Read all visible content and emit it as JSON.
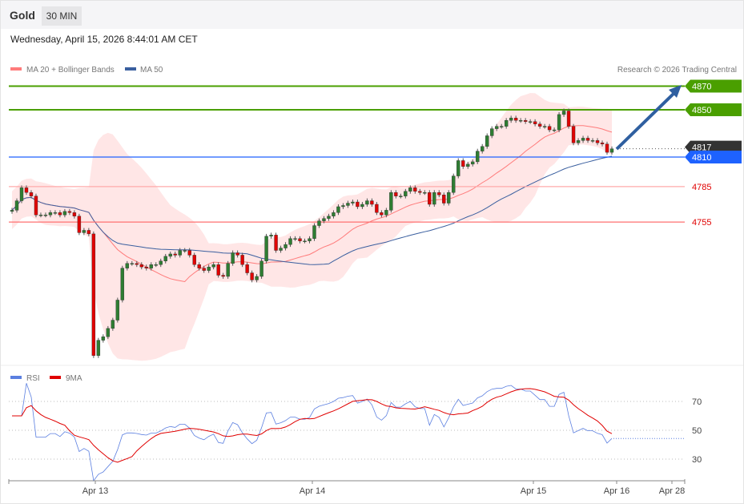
{
  "header": {
    "symbol": "Gold",
    "interval": "30 MIN",
    "datetime": "Wednesday, April 15, 2026 8:44:01 AM CET"
  },
  "colors": {
    "up": "#2e7d32",
    "down": "#e00000",
    "resistance": "#4a9f00",
    "pivot": "#1e62ff",
    "support": "#ff3b3b",
    "ma20": "#ff7b7b",
    "ma50": "#3a5f9f",
    "band": "#ffe0e0",
    "rsi": "#5b7fe0",
    "rsi_ma": "#e00000",
    "current": "#333333",
    "arrow": "#2f5fa0"
  },
  "chart_data": [
    {
      "type": "candlestick",
      "title": "Gold 30 MIN",
      "legend": [
        {
          "label": "MA 20 + Bollinger Bands"
        },
        {
          "label": "MA 50"
        }
      ],
      "credit": "Research © 2026 Trading Central",
      "first_open": 4764,
      "closes": [
        4765,
        4773,
        4784,
        4780,
        4777,
        4761,
        4761,
        4761,
        4763,
        4763,
        4761,
        4764,
        4763,
        4760,
        4746,
        4748,
        4745,
        4642,
        4655,
        4658,
        4665,
        4672,
        4689,
        4716,
        4720,
        4720,
        4719,
        4717,
        4716,
        4719,
        4719,
        4722,
        4726,
        4728,
        4727,
        4731,
        4731,
        4727,
        4719,
        4716,
        4714,
        4717,
        4719,
        4710,
        4709,
        4720,
        4729,
        4727,
        4719,
        4712,
        4706,
        4709,
        4722,
        4743,
        4744,
        4731,
        4733,
        4736,
        4741,
        4741,
        4739,
        4739,
        4741,
        4752,
        4756,
        4758,
        4760,
        4763,
        4768,
        4769,
        4771,
        4772,
        4768,
        4770,
        4773,
        4770,
        4763,
        4761,
        4765,
        4780,
        4777,
        4777,
        4781,
        4784,
        4781,
        4780,
        4780,
        4770,
        4780,
        4778,
        4771,
        4780,
        4794,
        4807,
        4802,
        4804,
        4806,
        4815,
        4819,
        4828,
        4834,
        4836,
        4836,
        4841,
        4843,
        4841,
        4841,
        4840,
        4840,
        4838,
        4836,
        4836,
        4833,
        4833,
        4846,
        4849,
        4836,
        4822,
        4824,
        4826,
        4824,
        4824,
        4822,
        4821,
        4814,
        4817
      ],
      "levels": [
        {
          "value": 4870,
          "label": "4870",
          "kind": "resistance"
        },
        {
          "value": 4850,
          "label": "4850",
          "kind": "resistance"
        },
        {
          "value": 4817,
          "label": "4817",
          "kind": "current"
        },
        {
          "value": 4810,
          "label": "4810",
          "kind": "pivot"
        },
        {
          "value": 4785,
          "label": "4785",
          "kind": "support"
        },
        {
          "value": 4755,
          "label": "4755",
          "kind": "support"
        }
      ],
      "x_ticks": [
        "Apr 13",
        "Apr 14",
        "Apr 15",
        "Apr 16",
        "Apr 28"
      ],
      "indicators": [
        "MA 20",
        "Bollinger Bands",
        "MA 50"
      ]
    },
    {
      "type": "line",
      "title": "RSI",
      "legend": [
        {
          "label": "RSI"
        },
        {
          "label": "9MA"
        }
      ],
      "y_ticks": [
        70,
        50,
        30
      ],
      "ylim": [
        20,
        80
      ],
      "rsi_period": 14,
      "ma_period": 9
    }
  ]
}
